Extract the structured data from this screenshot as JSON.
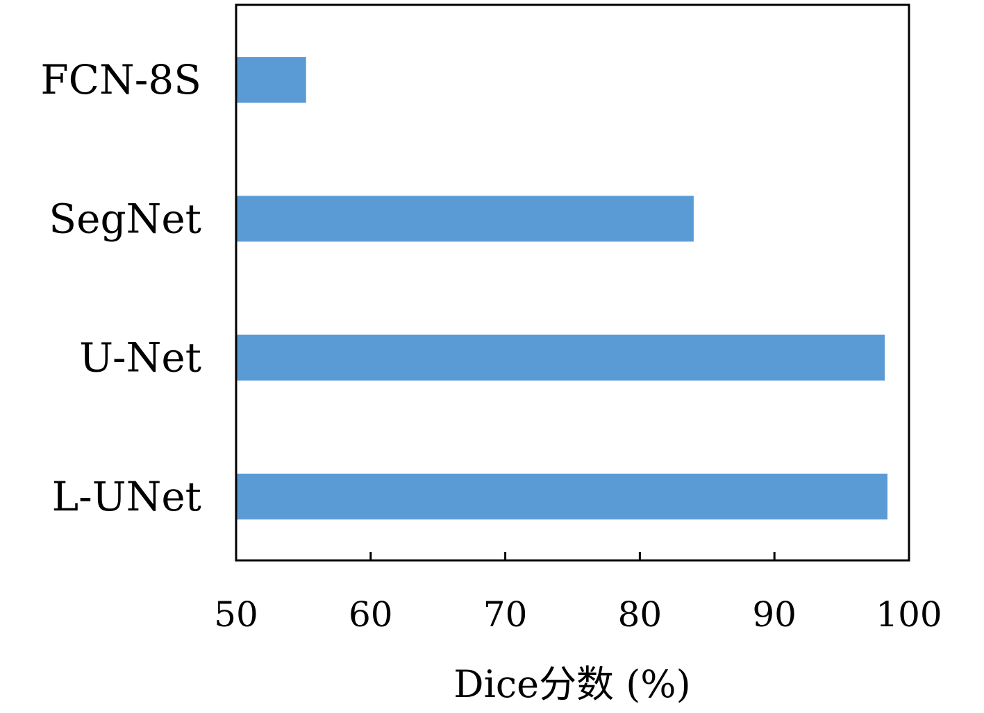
{
  "chart_data": {
    "type": "bar",
    "orientation": "horizontal",
    "categories": [
      "FCN-8S",
      "SegNet",
      "U-Net",
      "L-UNet"
    ],
    "values": [
      55.2,
      84.0,
      98.2,
      98.4
    ],
    "xlabel": "Dice分数 (%)",
    "ylabel": "",
    "xlim": [
      50,
      100
    ],
    "xticks": [
      50,
      60,
      70,
      80,
      90,
      100
    ],
    "xtick_labels": [
      "50",
      "60",
      "70",
      "80",
      "90",
      "100"
    ],
    "grid": false,
    "legend": "none",
    "bar_color": "#5b9bd5"
  }
}
